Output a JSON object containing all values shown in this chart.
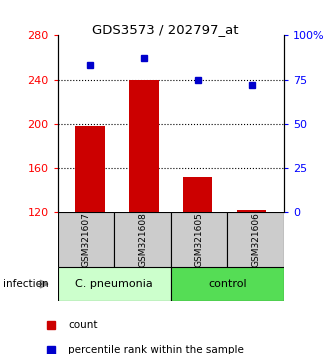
{
  "title": "GDS3573 / 202797_at",
  "samples": [
    "GSM321607",
    "GSM321608",
    "GSM321605",
    "GSM321606"
  ],
  "counts": [
    198,
    240,
    152,
    122
  ],
  "percentiles": [
    83,
    87,
    75,
    72
  ],
  "bar_bottom": 120,
  "ylim_left": [
    120,
    280
  ],
  "ylim_right": [
    0,
    100
  ],
  "yticks_left": [
    120,
    160,
    200,
    240,
    280
  ],
  "yticks_right": [
    0,
    25,
    50,
    75,
    100
  ],
  "ytick_labels_right": [
    "0",
    "25",
    "50",
    "75",
    "100%"
  ],
  "hlines": [
    160,
    200,
    240
  ],
  "bar_color": "#cc0000",
  "dot_color": "#0000cc",
  "group_labels": [
    "C. pneumonia",
    "control"
  ],
  "group_row_color_cp": "#ccffcc",
  "group_row_color_ctrl": "#55dd55",
  "infection_label": "infection",
  "sample_box_color": "#cccccc",
  "legend_items": [
    {
      "color": "#cc0000",
      "label": "count"
    },
    {
      "color": "#0000cc",
      "label": "percentile rank within the sample"
    }
  ],
  "bar_width": 0.55,
  "x_positions": [
    0,
    1,
    2,
    3
  ],
  "bg_color": "#ffffff"
}
